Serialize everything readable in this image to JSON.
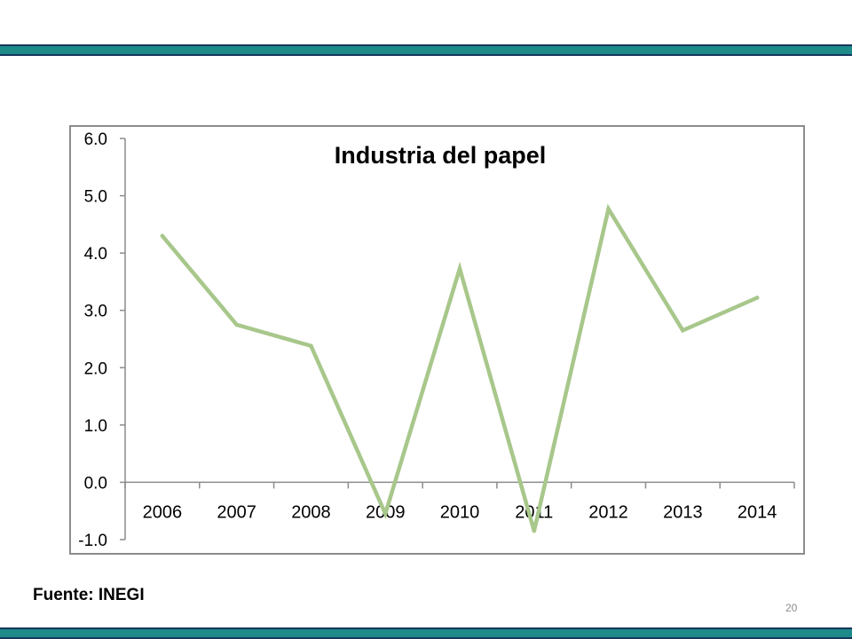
{
  "slide": {
    "source": "Fuente: INEGI",
    "page_number": "20"
  },
  "colors": {
    "band": "#1e8a8a",
    "band_border": "#17365d",
    "line": "#a8c78b",
    "axis": "#8c8c8c"
  },
  "chart_data": {
    "type": "line",
    "title": "Industria del papel",
    "xlabel": "",
    "ylabel": "",
    "categories": [
      "2006",
      "2007",
      "2008",
      "2009",
      "2010",
      "2011",
      "2012",
      "2013",
      "2014"
    ],
    "series": [
      {
        "values": [
          4.3,
          2.75,
          2.38,
          -0.55,
          3.73,
          -0.85,
          4.77,
          2.65,
          3.22
        ]
      }
    ],
    "ylim": [
      -1.0,
      6.0
    ],
    "yticks": [
      "6.0",
      "5.0",
      "4.0",
      "3.0",
      "2.0",
      "1.0",
      "0.0",
      "-1.0"
    ],
    "ytick_values": [
      6,
      5,
      4,
      3,
      2,
      1,
      0,
      -1
    ],
    "grid": false,
    "legend": "none"
  }
}
